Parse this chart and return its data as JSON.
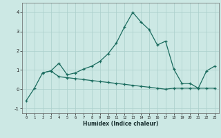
{
  "xlabel": "Humidex (Indice chaleur)",
  "x": [
    0,
    1,
    2,
    3,
    4,
    5,
    6,
    7,
    8,
    9,
    10,
    11,
    12,
    13,
    14,
    15,
    16,
    17,
    18,
    19,
    20,
    21,
    22,
    23
  ],
  "line1": [
    -0.6,
    0.05,
    0.85,
    0.95,
    1.35,
    0.75,
    0.85,
    1.05,
    1.2,
    1.45,
    1.85,
    2.4,
    3.25,
    4.0,
    3.5,
    3.1,
    2.3,
    2.5,
    1.05,
    0.3,
    0.3,
    0.05,
    0.95,
    1.2
  ],
  "line2": [
    null,
    null,
    0.85,
    0.95,
    0.65,
    0.6,
    0.55,
    0.5,
    0.45,
    0.4,
    0.35,
    0.3,
    0.25,
    0.2,
    0.15,
    0.1,
    0.05,
    0.0,
    0.05,
    0.05,
    0.05,
    0.05,
    0.05,
    0.05
  ],
  "line_color": "#1a6b5e",
  "bg_color": "#cce8e4",
  "grid_color": "#aacfcb",
  "ylim": [
    -1.25,
    4.5
  ],
  "xlim": [
    -0.5,
    23.5
  ],
  "yticks": [
    -1,
    0,
    1,
    2,
    3,
    4
  ],
  "xticks": [
    0,
    1,
    2,
    3,
    4,
    5,
    6,
    7,
    8,
    9,
    10,
    11,
    12,
    13,
    14,
    15,
    16,
    17,
    18,
    19,
    20,
    21,
    22,
    23
  ]
}
